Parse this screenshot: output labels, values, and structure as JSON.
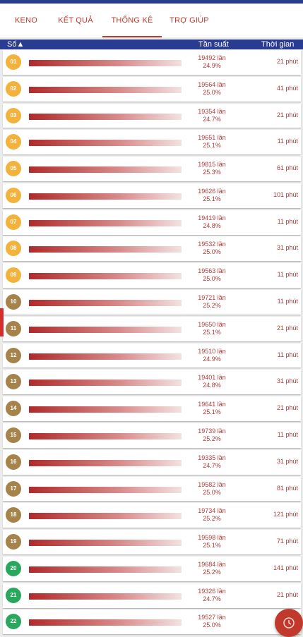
{
  "tabs": [
    {
      "label": "KENO"
    },
    {
      "label": "KẾT QUẢ"
    },
    {
      "label": "THỐNG KÊ"
    },
    {
      "label": "TRỢ GIÚP"
    }
  ],
  "header": {
    "col_number": "Số▲",
    "col_freq": "Tần suất",
    "col_time": "Thời gian"
  },
  "colors": {
    "accent": "#c0392b",
    "header": "#2a3c92",
    "ball_orange": "#f3b23c",
    "ball_brown": "#a5834a",
    "ball_green": "#29a75c"
  },
  "rows": [
    {
      "num": "01",
      "count": "19492 lần",
      "pct": "24.9%",
      "time": "21 phút",
      "color": "orange"
    },
    {
      "num": "02",
      "count": "19564 lần",
      "pct": "25.0%",
      "time": "41 phút",
      "color": "orange"
    },
    {
      "num": "03",
      "count": "19354 lần",
      "pct": "24.7%",
      "time": "21 phút",
      "color": "orange"
    },
    {
      "num": "04",
      "count": "19651 lần",
      "pct": "25.1%",
      "time": "11 phút",
      "color": "orange"
    },
    {
      "num": "05",
      "count": "19815 lần",
      "pct": "25.3%",
      "time": "61 phút",
      "color": "orange"
    },
    {
      "num": "06",
      "count": "19626 lần",
      "pct": "25.1%",
      "time": "101 phút",
      "color": "orange"
    },
    {
      "num": "07",
      "count": "19419 lần",
      "pct": "24.8%",
      "time": "11 phút",
      "color": "orange"
    },
    {
      "num": "08",
      "count": "19532 lần",
      "pct": "25.0%",
      "time": "31 phút",
      "color": "orange"
    },
    {
      "num": "09",
      "count": "19563 lần",
      "pct": "25.0%",
      "time": "11 phút",
      "color": "orange"
    },
    {
      "num": "10",
      "count": "19721 lần",
      "pct": "25.2%",
      "time": "11 phút",
      "color": "brown"
    },
    {
      "num": "11",
      "count": "19650 lần",
      "pct": "25.1%",
      "time": "21 phút",
      "color": "brown"
    },
    {
      "num": "12",
      "count": "19510 lần",
      "pct": "24.9%",
      "time": "11 phút",
      "color": "brown"
    },
    {
      "num": "13",
      "count": "19401 lần",
      "pct": "24.8%",
      "time": "31 phút",
      "color": "brown"
    },
    {
      "num": "14",
      "count": "19641 lần",
      "pct": "25.1%",
      "time": "21 phút",
      "color": "brown"
    },
    {
      "num": "15",
      "count": "19739 lần",
      "pct": "25.2%",
      "time": "11 phút",
      "color": "brown"
    },
    {
      "num": "16",
      "count": "19335 lần",
      "pct": "24.7%",
      "time": "31 phút",
      "color": "brown"
    },
    {
      "num": "17",
      "count": "19582 lần",
      "pct": "25.0%",
      "time": "81 phút",
      "color": "brown"
    },
    {
      "num": "18",
      "count": "19734 lần",
      "pct": "25.2%",
      "time": "121 phút",
      "color": "brown"
    },
    {
      "num": "19",
      "count": "19598 lần",
      "pct": "25.1%",
      "time": "71 phút",
      "color": "brown"
    },
    {
      "num": "20",
      "count": "19684 lần",
      "pct": "25.2%",
      "time": "141 phút",
      "color": "green"
    },
    {
      "num": "21",
      "count": "19326 lần",
      "pct": "24.7%",
      "time": "21 phút",
      "color": "green"
    },
    {
      "num": "22",
      "count": "19527 lần",
      "pct": "25.0%",
      "time": "",
      "color": "green"
    }
  ],
  "fab": {
    "icon": "clock-icon"
  }
}
